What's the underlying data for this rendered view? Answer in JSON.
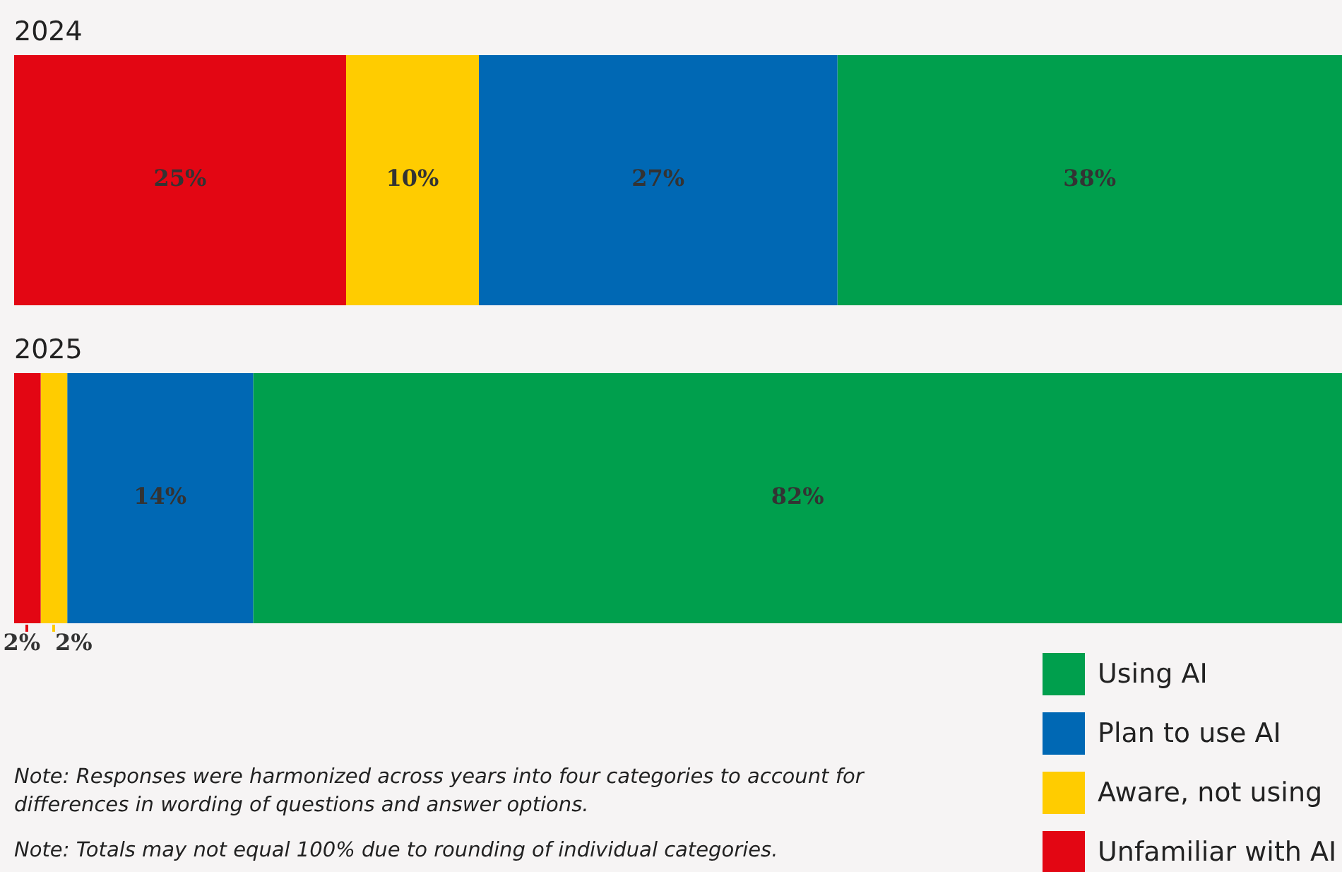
{
  "chart_data": {
    "type": "bar",
    "orientation": "horizontal",
    "stacked": true,
    "categories": [
      "2024",
      "2025"
    ],
    "series": [
      {
        "name": "Unfamiliar with AI",
        "color": "#e30613",
        "values": [
          25,
          2
        ],
        "value_labels": [
          "25%",
          "2%"
        ]
      },
      {
        "name": "Aware, not using",
        "color": "#ffcc00",
        "values": [
          10,
          2
        ],
        "value_labels": [
          "10%",
          "2%"
        ]
      },
      {
        "name": "Plan to use AI",
        "color": "#0068b4",
        "values": [
          27,
          14
        ],
        "value_labels": [
          "27%",
          "14%"
        ]
      },
      {
        "name": "Using AI",
        "color": "#009f4d",
        "values": [
          38,
          82
        ],
        "value_labels": [
          "38%",
          "82%"
        ]
      }
    ],
    "legend": "bottom right",
    "annotations": [
      "Note: Responses were harmonized across years into four categories to account for differences in wording of questions and answer options.",
      "Note: Totals may not equal 100% due to rounding of individual categories."
    ]
  }
}
